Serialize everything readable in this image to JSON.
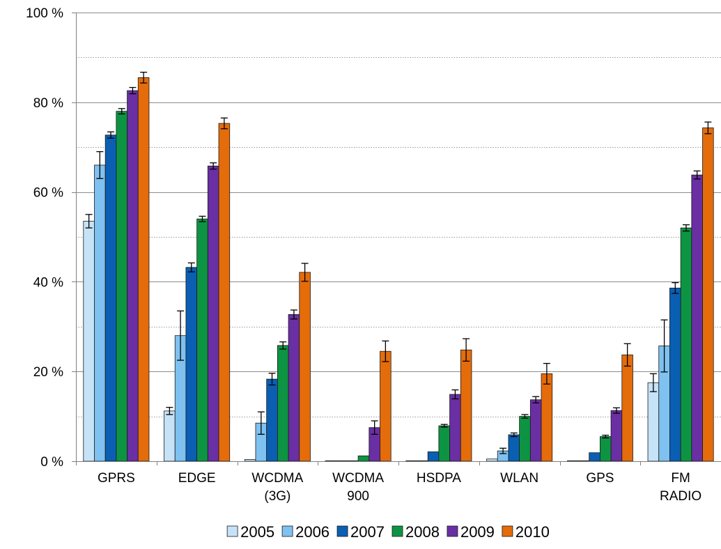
{
  "chart_data": {
    "type": "bar",
    "title": "",
    "xlabel": "",
    "ylabel": "",
    "ylim": [
      0,
      100
    ],
    "yticks": [
      {
        "value": 0,
        "label": "0 %"
      },
      {
        "value": 20,
        "label": "20 %"
      },
      {
        "value": 40,
        "label": "40 %"
      },
      {
        "value": 60,
        "label": "60 %"
      },
      {
        "value": 80,
        "label": "80 %"
      },
      {
        "value": 100,
        "label": "100 %"
      }
    ],
    "minor_gridlines": [
      10,
      30,
      50,
      70,
      90
    ],
    "grid": true,
    "legend_position": "bottom",
    "categories": [
      [
        "GPRS"
      ],
      [
        "EDGE"
      ],
      [
        "WCDMA",
        "(3G)"
      ],
      [
        "WCDMA",
        "900"
      ],
      [
        "HSDPA"
      ],
      [
        "WLAN"
      ],
      [
        "GPS"
      ],
      [
        "FM",
        "RADIO"
      ]
    ],
    "series": [
      {
        "name": "2005",
        "color": "#c6e2f7",
        "values": [
          53.5,
          11.2,
          0.4,
          0.1,
          0.1,
          0.5,
          0.1,
          17.5
        ],
        "errors": [
          1.5,
          0.8,
          0.1,
          0.05,
          0.05,
          0.1,
          0.05,
          2.0
        ]
      },
      {
        "name": "2006",
        "color": "#7fc1f0",
        "values": [
          66,
          28,
          8.5,
          0.1,
          0.1,
          2.3,
          0.1,
          25.7
        ],
        "errors": [
          3.0,
          5.5,
          2.5,
          0.05,
          0.05,
          0.6,
          0.05,
          5.8
        ]
      },
      {
        "name": "2007",
        "color": "#0a5fb3",
        "values": [
          72.7,
          43.2,
          18.3,
          0.1,
          2.1,
          5.9,
          1.9,
          38.6
        ],
        "errors": [
          0.7,
          1.0,
          1.3,
          0.05,
          0.2,
          0.4,
          0.2,
          1.2
        ]
      },
      {
        "name": "2008",
        "color": "#0d9442",
        "values": [
          78,
          54,
          25.8,
          1.2,
          7.9,
          10,
          5.5,
          52
        ],
        "errors": [
          0.6,
          0.6,
          0.8,
          0.15,
          0.3,
          0.4,
          0.3,
          0.7
        ]
      },
      {
        "name": "2009",
        "color": "#6a2fa3",
        "values": [
          82.6,
          65.8,
          32.7,
          7.5,
          14.9,
          13.7,
          11.3,
          63.8
        ],
        "errors": [
          0.7,
          0.7,
          1.0,
          1.5,
          1.0,
          0.7,
          0.6,
          0.9
        ]
      },
      {
        "name": "2010",
        "color": "#e46c0a",
        "values": [
          85.5,
          75.3,
          42.1,
          24.5,
          24.8,
          19.5,
          23.7,
          74.3
        ],
        "errors": [
          1.2,
          1.2,
          2.0,
          2.3,
          2.5,
          2.3,
          2.5,
          1.3
        ]
      }
    ]
  }
}
